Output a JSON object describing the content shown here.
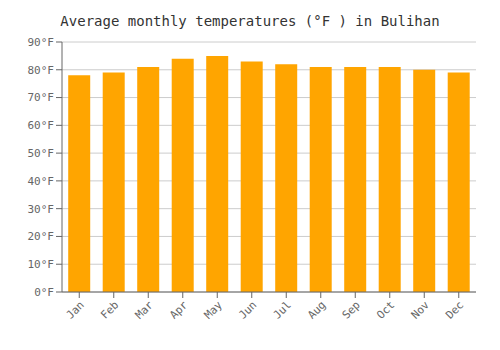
{
  "chart_data": {
    "type": "bar",
    "title": "Average monthly temperatures (°F ) in Bulihan",
    "categories": [
      "Jan",
      "Feb",
      "Mar",
      "Apr",
      "May",
      "Jun",
      "Jul",
      "Aug",
      "Sep",
      "Oct",
      "Nov",
      "Dec"
    ],
    "values": [
      78,
      79,
      81,
      84,
      85,
      83,
      82,
      81,
      81,
      81,
      80,
      79
    ],
    "color": "#ffa500",
    "ylim": [
      0,
      90
    ],
    "yticks": [
      {
        "value": 0,
        "label": "0°F"
      },
      {
        "value": 10,
        "label": "10°F"
      },
      {
        "value": 20,
        "label": "20°F"
      },
      {
        "value": 30,
        "label": "30°F"
      },
      {
        "value": 40,
        "label": "40°F"
      },
      {
        "value": 50,
        "label": "50°F"
      },
      {
        "value": 60,
        "label": "60°F"
      },
      {
        "value": 70,
        "label": "70°F"
      },
      {
        "value": 80,
        "label": "80°F"
      },
      {
        "value": 90,
        "label": "90°F"
      }
    ],
    "grid": true
  }
}
